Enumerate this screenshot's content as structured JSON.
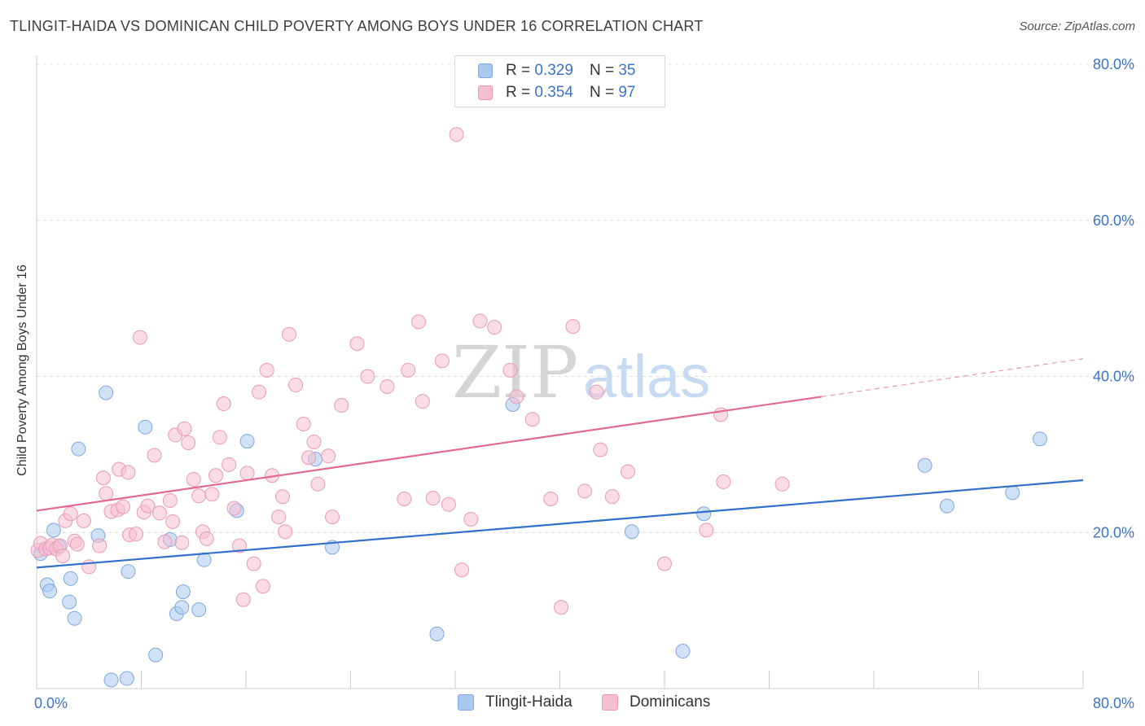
{
  "header": {
    "title": "TLINGIT-HAIDA VS DOMINICAN CHILD POVERTY AMONG BOYS UNDER 16 CORRELATION CHART",
    "source": "Source: ZipAtlas.com"
  },
  "watermark": {
    "zip": "ZIP",
    "atlas": "atlas"
  },
  "legend": {
    "rows": [
      {
        "r_label": "R =",
        "r_value": "0.329",
        "n_label": "N =",
        "n_value": "35"
      },
      {
        "r_label": "R =",
        "r_value": "0.354",
        "n_label": "N =",
        "n_value": "97"
      }
    ]
  },
  "colors": {
    "blue_fill": "#a9c8ef",
    "blue_stroke": "#7ea8e0",
    "blue_line": "#3070c8",
    "pink_fill": "#f6bfd0",
    "pink_stroke": "#ea9ab5",
    "pink_line": "#e2698f",
    "tick_text": "#3d73c9",
    "grid": "#dcdcdc"
  },
  "chart_data": {
    "type": "scatter",
    "xlabel": "",
    "ylabel": "Child Poverty Among Boys Under 16",
    "xlim": [
      0,
      80
    ],
    "ylim": [
      0,
      80
    ],
    "x_tick_labels": [
      {
        "value": 0,
        "label": "0.0%"
      },
      {
        "value": 80,
        "label": "80.0%"
      }
    ],
    "y_tick_labels": [
      {
        "value": 20,
        "label": "20.0%"
      },
      {
        "value": 40,
        "label": "40.0%"
      },
      {
        "value": 60,
        "label": "60.0%"
      },
      {
        "value": 80,
        "label": "80.0%"
      }
    ],
    "grid": "horizontal dashed",
    "series": [
      {
        "name": "Tlingit-Haida",
        "color": "#a9c8ef",
        "points": [
          [
            0.3,
            17.3
          ],
          [
            0.8,
            13.3
          ],
          [
            1.0,
            12.5
          ],
          [
            1.3,
            20.3
          ],
          [
            1.7,
            18.2
          ],
          [
            2.5,
            11.1
          ],
          [
            2.6,
            14.1
          ],
          [
            2.9,
            9.0
          ],
          [
            3.2,
            30.7
          ],
          [
            4.7,
            19.6
          ],
          [
            5.3,
            37.9
          ],
          [
            5.7,
            1.1
          ],
          [
            6.9,
            1.3
          ],
          [
            7.0,
            15.0
          ],
          [
            8.3,
            33.5
          ],
          [
            9.1,
            4.3
          ],
          [
            10.2,
            19.1
          ],
          [
            10.7,
            9.6
          ],
          [
            11.1,
            10.4
          ],
          [
            11.2,
            12.4
          ],
          [
            12.4,
            10.1
          ],
          [
            12.8,
            16.5
          ],
          [
            15.3,
            22.8
          ],
          [
            16.1,
            31.7
          ],
          [
            21.3,
            29.4
          ],
          [
            22.6,
            18.1
          ],
          [
            30.6,
            7.0
          ],
          [
            36.4,
            36.4
          ],
          [
            45.5,
            20.1
          ],
          [
            49.4,
            4.8
          ],
          [
            51.0,
            22.4
          ],
          [
            67.9,
            28.6
          ],
          [
            69.6,
            23.4
          ],
          [
            74.6,
            25.1
          ],
          [
            76.7,
            32.0
          ]
        ]
      },
      {
        "name": "Dominicans",
        "color": "#f6bfd0",
        "points": [
          [
            0.1,
            17.7
          ],
          [
            0.3,
            18.6
          ],
          [
            0.7,
            17.9
          ],
          [
            1.0,
            18.0
          ],
          [
            1.2,
            18.4
          ],
          [
            1.5,
            17.9
          ],
          [
            1.8,
            18.3
          ],
          [
            2.0,
            17.0
          ],
          [
            2.2,
            21.5
          ],
          [
            2.6,
            22.4
          ],
          [
            2.9,
            18.9
          ],
          [
            3.1,
            18.5
          ],
          [
            3.6,
            21.5
          ],
          [
            4.0,
            15.6
          ],
          [
            4.8,
            18.3
          ],
          [
            5.1,
            27.0
          ],
          [
            5.3,
            25.0
          ],
          [
            5.7,
            22.7
          ],
          [
            6.2,
            22.9
          ],
          [
            6.3,
            28.1
          ],
          [
            6.6,
            23.3
          ],
          [
            7.0,
            27.7
          ],
          [
            7.1,
            19.7
          ],
          [
            7.6,
            19.8
          ],
          [
            7.9,
            45.0
          ],
          [
            8.2,
            22.6
          ],
          [
            8.5,
            23.4
          ],
          [
            9.0,
            29.9
          ],
          [
            9.4,
            22.5
          ],
          [
            9.8,
            18.8
          ],
          [
            10.2,
            24.1
          ],
          [
            10.4,
            21.4
          ],
          [
            10.6,
            32.5
          ],
          [
            11.1,
            18.7
          ],
          [
            11.3,
            33.3
          ],
          [
            11.6,
            31.5
          ],
          [
            12.0,
            26.8
          ],
          [
            12.4,
            24.7
          ],
          [
            12.7,
            20.1
          ],
          [
            13.0,
            19.2
          ],
          [
            13.4,
            24.9
          ],
          [
            13.7,
            27.3
          ],
          [
            14.0,
            32.2
          ],
          [
            14.3,
            36.5
          ],
          [
            14.7,
            28.7
          ],
          [
            15.1,
            23.1
          ],
          [
            15.5,
            18.3
          ],
          [
            15.8,
            11.4
          ],
          [
            16.1,
            27.6
          ],
          [
            16.6,
            16.0
          ],
          [
            17.0,
            38.0
          ],
          [
            17.3,
            13.1
          ],
          [
            17.6,
            40.8
          ],
          [
            18.0,
            27.3
          ],
          [
            18.5,
            22.0
          ],
          [
            18.8,
            24.6
          ],
          [
            19.0,
            20.1
          ],
          [
            19.3,
            45.4
          ],
          [
            19.8,
            38.9
          ],
          [
            20.4,
            33.9
          ],
          [
            20.8,
            29.6
          ],
          [
            21.2,
            31.6
          ],
          [
            21.5,
            26.2
          ],
          [
            22.3,
            29.8
          ],
          [
            22.6,
            22.0
          ],
          [
            23.3,
            36.3
          ],
          [
            24.5,
            44.2
          ],
          [
            25.3,
            40.0
          ],
          [
            26.8,
            38.7
          ],
          [
            28.1,
            24.3
          ],
          [
            28.4,
            40.8
          ],
          [
            29.2,
            47.0
          ],
          [
            29.5,
            36.8
          ],
          [
            30.3,
            24.4
          ],
          [
            31.0,
            42.0
          ],
          [
            31.5,
            23.6
          ],
          [
            32.1,
            71.0
          ],
          [
            32.5,
            15.2
          ],
          [
            33.2,
            21.7
          ],
          [
            33.9,
            47.1
          ],
          [
            35.0,
            46.3
          ],
          [
            36.2,
            40.8
          ],
          [
            36.7,
            37.4
          ],
          [
            37.9,
            34.5
          ],
          [
            39.3,
            24.3
          ],
          [
            40.1,
            10.4
          ],
          [
            41.0,
            46.4
          ],
          [
            41.9,
            25.3
          ],
          [
            42.8,
            38.0
          ],
          [
            43.1,
            30.6
          ],
          [
            44.0,
            24.6
          ],
          [
            45.2,
            27.8
          ],
          [
            48.0,
            16.0
          ],
          [
            51.2,
            20.3
          ],
          [
            52.3,
            35.1
          ],
          [
            52.5,
            26.5
          ],
          [
            57.0,
            26.2
          ]
        ]
      }
    ],
    "trend_lines": [
      {
        "name": "Tlingit-Haida",
        "x0": 0,
        "y0": 15.5,
        "x1": 80,
        "y1": 26.7,
        "dashed_to": null
      },
      {
        "name": "Dominicans",
        "x0": 0,
        "y0": 22.8,
        "x1": 60,
        "y1": 37.4,
        "dashed_to": 80
      }
    ]
  },
  "bottom_legend": {
    "items": [
      {
        "label": "Tlingit-Haida"
      },
      {
        "label": "Dominicans"
      }
    ]
  }
}
